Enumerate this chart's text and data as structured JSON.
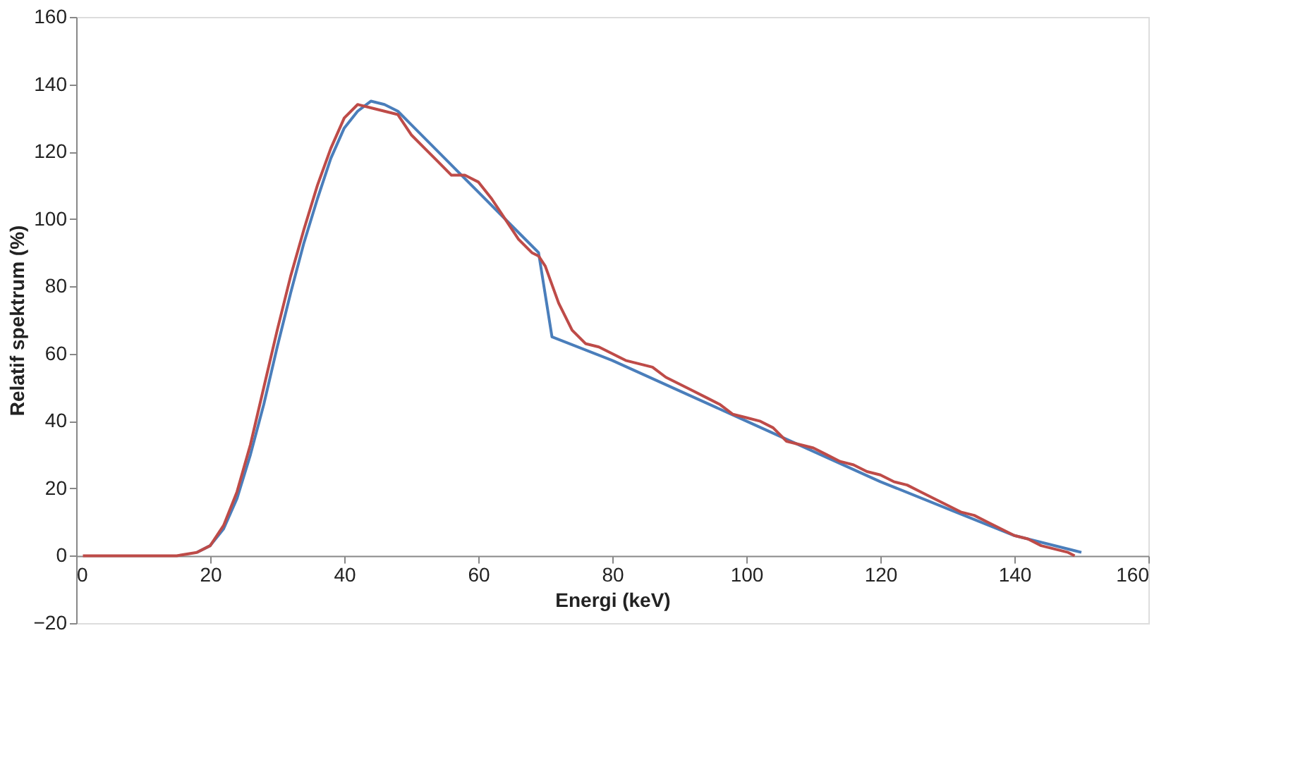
{
  "chart_data": {
    "type": "line",
    "xlabel": "Energi (keV)",
    "ylabel": "Relatif spektrum (%)",
    "xlim": [
      0,
      160
    ],
    "xticks": [
      0,
      20,
      40,
      60,
      80,
      100,
      120,
      140,
      160
    ],
    "ylim": [
      -20,
      160
    ],
    "yticks": [
      -20,
      0,
      20,
      40,
      60,
      80,
      100,
      120,
      140,
      160
    ],
    "grid": false,
    "legend": false,
    "marker": "none",
    "line_style": "solid",
    "series": [
      {
        "color": "#4a7ebb",
        "x": [
          18,
          20,
          22,
          24,
          26,
          28,
          30,
          32,
          34,
          36,
          38,
          40,
          42,
          44,
          46,
          48,
          50,
          55,
          60,
          65,
          69,
          71,
          80,
          90,
          100,
          110,
          120,
          130,
          140,
          150
        ],
        "values": [
          1,
          3,
          8,
          17,
          30,
          45,
          62,
          78,
          93,
          106,
          118,
          127,
          132,
          135,
          134,
          132,
          128,
          118,
          108,
          98,
          90,
          65,
          58,
          49,
          40,
          31,
          22,
          14,
          6,
          1
        ]
      },
      {
        "color": "#be4b48",
        "x": [
          1,
          15,
          18,
          20,
          22,
          24,
          26,
          28,
          30,
          32,
          34,
          36,
          38,
          40,
          42,
          44,
          46,
          48,
          50,
          52,
          54,
          56,
          58,
          60,
          62,
          64,
          66,
          68,
          69,
          70,
          72,
          74,
          76,
          78,
          80,
          82,
          84,
          86,
          88,
          90,
          92,
          94,
          96,
          98,
          100,
          102,
          104,
          106,
          108,
          110,
          112,
          114,
          116,
          118,
          120,
          122,
          124,
          126,
          128,
          130,
          132,
          134,
          136,
          138,
          140,
          142,
          144,
          146,
          148,
          149
        ],
        "values": [
          0,
          0,
          1,
          3,
          9,
          19,
          33,
          50,
          67,
          83,
          97,
          110,
          121,
          130,
          134,
          133,
          132,
          131,
          125,
          121,
          117,
          113,
          113,
          111,
          106,
          100,
          94,
          90,
          89,
          86,
          75,
          67,
          63,
          62,
          60,
          58,
          57,
          56,
          53,
          51,
          49,
          47,
          45,
          42,
          41,
          40,
          38,
          34,
          33,
          32,
          30,
          28,
          27,
          25,
          24,
          22,
          21,
          19,
          17,
          15,
          13,
          12,
          10,
          8,
          6,
          5,
          3,
          2,
          1,
          0
        ]
      }
    ]
  }
}
